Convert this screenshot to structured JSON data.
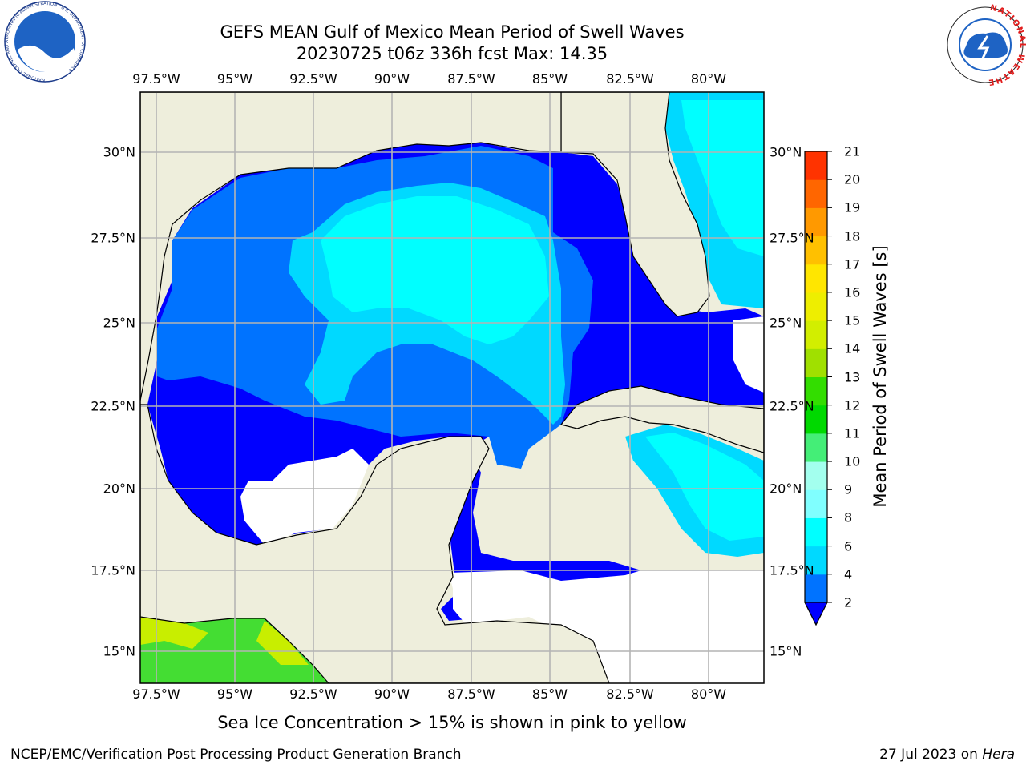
{
  "title_line1": "GEFS MEAN Gulf of Mexico Mean Period of Swell Waves",
  "title_line2": "20230725 t06z 336h fcst   Max: 14.35",
  "lon_labels": [
    "97.5°W",
    "95°W",
    "92.5°W",
    "90°W",
    "87.5°W",
    "85°W",
    "82.5°W",
    "80°W"
  ],
  "lat_labels": [
    "30°N",
    "27.5°N",
    "25°N",
    "22.5°N",
    "20°N",
    "17.5°N",
    "15°N"
  ],
  "colorbar": {
    "label": "Mean Period of Swell Waves [s]",
    "ticks": [
      "2",
      "4",
      "6",
      "8",
      "9",
      "10",
      "11",
      "12",
      "13",
      "14",
      "15",
      "16",
      "17",
      "18",
      "19",
      "20",
      "21"
    ],
    "colors": [
      "#0000ff",
      "#0073ff",
      "#00d9ff",
      "#00ffff",
      "#80ffff",
      "#a3ffee",
      "#44ee77",
      "#00d900",
      "#33dd00",
      "#a0e000",
      "#d2ee00",
      "#eeee00",
      "#ffe600",
      "#ffc000",
      "#ff9900",
      "#ff6600",
      "#ff3300",
      "#ff0000"
    ]
  },
  "sea_ice_notice": "Sea Ice Concentration > 15% is shown in pink to yellow",
  "footer_left": "NCEP/EMC/Verification Post Processing Product Generation Branch",
  "footer_right_prefix": "27 Jul 2023 on ",
  "footer_right_host": "Hera",
  "logo_left_text": "NOAA",
  "logo_right_text": "NATIONAL WEATHER SERVICE",
  "logo_left_ring_text": "NATIONAL OCEANIC AND ATMOSPHERIC ADMINISTRATION · U.S. DEPARTMENT OF COMMERCE"
}
